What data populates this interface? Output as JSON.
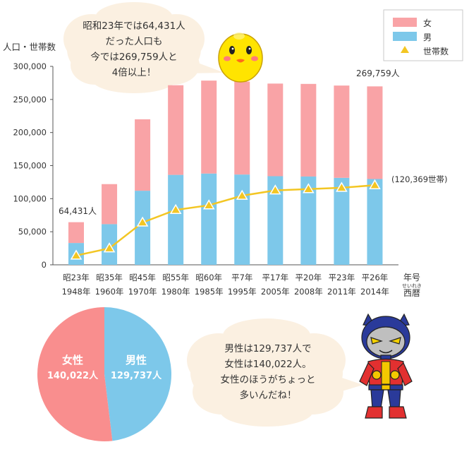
{
  "chart_data": [
    {
      "type": "bar",
      "stacked": true,
      "ylabel": "人口・世帯数",
      "ylim": [
        0,
        300000
      ],
      "yticks": [
        "0",
        "50,000",
        "100,000",
        "150,000",
        "200,000",
        "250,000",
        "300,000"
      ],
      "ytick_values": [
        0,
        50000,
        100000,
        150000,
        200000,
        250000,
        300000
      ],
      "categories_era": [
        "昭23年",
        "昭35年",
        "昭45年",
        "昭55年",
        "昭60年",
        "平7年",
        "平17年",
        "平20年",
        "平23年",
        "平26年"
      ],
      "categories_year": [
        "1948年",
        "1960年",
        "1970年",
        "1980年",
        "1985年",
        "1995年",
        "2005年",
        "2008年",
        "2011年",
        "2014年"
      ],
      "xlabel_era": "年号",
      "xlabel_year_ruby": "せいれき",
      "xlabel_year": "西暦",
      "series": [
        {
          "name": "男",
          "color": "#7dc8ea",
          "values": [
            33000,
            61500,
            112000,
            136000,
            138000,
            136500,
            134000,
            133500,
            131500,
            129737
          ]
        },
        {
          "name": "女",
          "color": "#f9a3a6",
          "values": [
            31431,
            60500,
            108000,
            135500,
            140500,
            140500,
            140000,
            140000,
            139500,
            140022
          ]
        },
        {
          "name": "世帯数",
          "type": "line",
          "color": "#f3c623",
          "marker": "triangle",
          "values": [
            14000,
            25000,
            64000,
            83000,
            90000,
            104500,
            112500,
            114500,
            116500,
            120369
          ]
        }
      ],
      "legend": {
        "position": "top-right",
        "items": [
          {
            "label": "女",
            "color": "#f9a3a6",
            "shape": "square"
          },
          {
            "label": "男",
            "color": "#7dc8ea",
            "shape": "square"
          },
          {
            "label": "世帯数",
            "color": "#f3c623",
            "shape": "triangle"
          }
        ]
      },
      "annotations": {
        "first_total": "64,431人",
        "last_total": "269,759人",
        "last_households": "(120,369世帯)"
      },
      "grid": false
    },
    {
      "type": "pie",
      "slices": [
        {
          "label": "男性",
          "value_label": "129,737人",
          "value": 129737,
          "color": "#7dc8ea"
        },
        {
          "label": "女性",
          "value_label": "140,022人",
          "value": 140022,
          "color": "#f98e8e"
        }
      ]
    }
  ],
  "bubbles": {
    "top": [
      "昭和23年では64,431人",
      "だった人口も",
      "今では269,759人と",
      "4倍以上！"
    ],
    "bottom": [
      "男性は129,737人で",
      "女性は140,022人。",
      "女性のほうがちょっと",
      "多いんだね！"
    ]
  },
  "characters": {
    "top": "yellow-mascot",
    "bottom": "hero-mascot"
  }
}
